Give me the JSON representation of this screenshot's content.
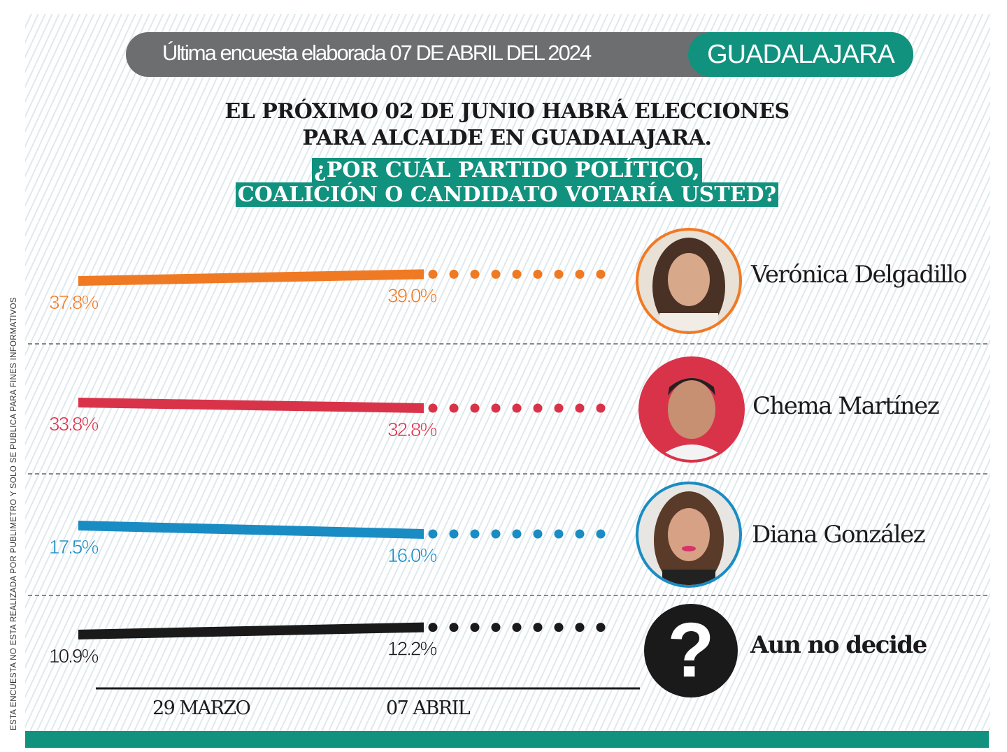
{
  "header": {
    "survey_date": "Última encuesta elaborada 07 DE ABRIL DEL 2024",
    "city": "GUADALAJARA"
  },
  "title": {
    "line1": "EL PRÓXIMO 02 DE JUNIO HABRÁ ELECCIONES",
    "line2": "PARA ALCALDE EN GUADALAJARA.",
    "question1": "¿POR CUÁL PARTIDO POLÍTICO,",
    "question2": "COALICIÓN O CANDIDATO VOTARÍA USTED?"
  },
  "side_note": "ESTA ENCUESTA NO ESTA REALIZADA POR PUBLIMETRO Y SOLO SE PUBLICA PARA FINES INFORMATIVOS",
  "chart_data": {
    "type": "line",
    "categories": [
      "29 MARZO",
      "07 ABRIL"
    ],
    "series": [
      {
        "name": "Verónica Delgadillo",
        "values": [
          37.8,
          39.0
        ],
        "labels": [
          "37.8%",
          "39.0%"
        ],
        "color": "#f07a23"
      },
      {
        "name": "Chema Martínez",
        "values": [
          33.8,
          32.8
        ],
        "labels": [
          "33.8%",
          "32.8%"
        ],
        "color": "#d9334a"
      },
      {
        "name": "Diana González",
        "values": [
          17.5,
          16.0
        ],
        "labels": [
          "17.5%",
          "16.0%"
        ],
        "color": "#1a8cc4"
      },
      {
        "name": "Aun no decide",
        "values": [
          10.9,
          12.2
        ],
        "labels": [
          "10.9%",
          "12.2%"
        ],
        "color": "#1a1a1a"
      }
    ]
  },
  "undecided_icon": "question-mark-icon"
}
